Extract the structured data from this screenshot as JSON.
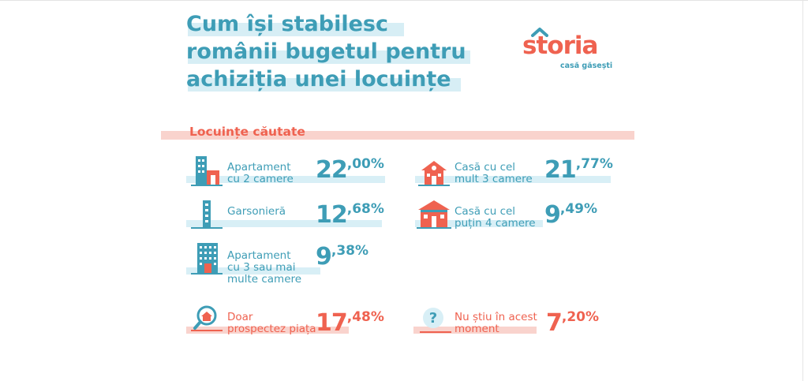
{
  "title": {
    "line1": "Cum își stabilesc",
    "line2": "românii bugetul pentru",
    "line3": "achiziția unei locuințe"
  },
  "logo": {
    "wordmark": "storia",
    "tagline": "casă găsești"
  },
  "section": {
    "title": "Locuințe căutate"
  },
  "stats": [
    {
      "label": "Apartament\ncu 2 camere",
      "value_int": "22",
      "value_dec": ",00%",
      "icon": "apartment-building-icon"
    },
    {
      "label": "Casă cu cel\nmult 3 camere",
      "value_int": "21",
      "value_dec": ",77%",
      "icon": "small-house-icon"
    },
    {
      "label": "Garsonieră",
      "value_int": "12",
      "value_dec": ",68%",
      "icon": "studio-tower-icon"
    },
    {
      "label": "Casă cu cel\npuțin 4 camere",
      "value_int": "9",
      "value_dec": ",49%",
      "icon": "large-house-icon"
    },
    {
      "label": "Apartament\ncu 3 sau mai\nmulte camere",
      "value_int": "9",
      "value_dec": ",38%",
      "icon": "tall-building-icon"
    },
    {
      "label": "Doar\nprospectez piața",
      "value_int": "17",
      "value_dec": ",48%",
      "icon": "magnifier-house-icon"
    },
    {
      "label": "Nu știu în acest\nmoment",
      "value_int": "7",
      "value_dec": ",20%",
      "icon": "question-mark-icon"
    }
  ],
  "colors": {
    "blue": "#3e9db6",
    "coral": "#ef6250",
    "light_blue": "#d8eff6",
    "light_pink": "#f9d3cd"
  }
}
